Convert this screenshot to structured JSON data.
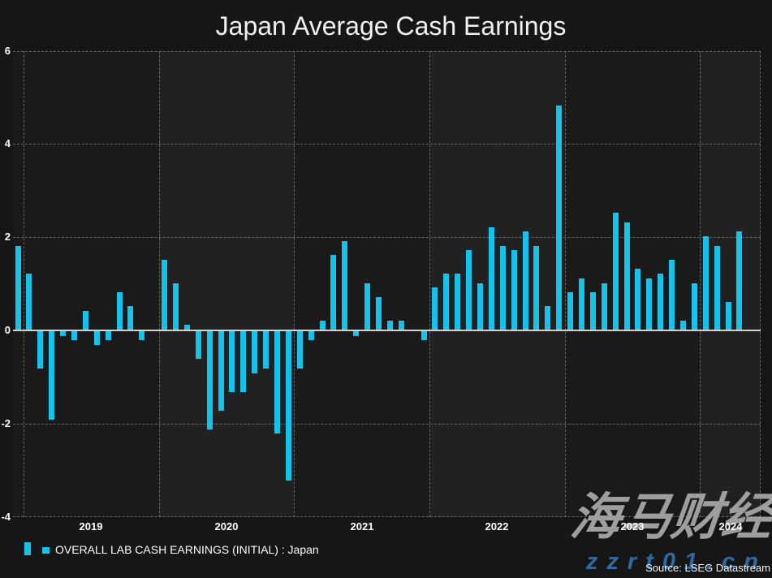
{
  "title": "Japan Average Cash Earnings",
  "legend": {
    "label": "OVERALL LAB CASH EARNINGS (INITIAL) : Japan"
  },
  "source": "Source: LSEG Datastream",
  "watermark": {
    "text": "海马财经",
    "url": "zzrt01.cn"
  },
  "colors": {
    "bar": "#17c2ea",
    "background": "#161616",
    "band_dark": "#1a1a1a",
    "band_light": "#212121",
    "grid": "#7d7d7d",
    "zero_line": "#d6d2ca",
    "text": "#ffffff",
    "watermark_gray": "#9e9e9e",
    "watermark_blue": "#31699f"
  },
  "chart_data": {
    "type": "bar",
    "title": "Japan Average Cash Earnings",
    "xlabel": "",
    "ylabel": "",
    "ylim": [
      -4,
      6
    ],
    "yticks": [
      6,
      4,
      2,
      0,
      -2,
      -4
    ],
    "xticks": [
      "2019",
      "2020",
      "2021",
      "2022",
      "2023",
      "2024"
    ],
    "grid": "dashed",
    "legend_position": "bottom-left",
    "x": [
      "2018-12",
      "2019-01",
      "2019-02",
      "2019-03",
      "2019-04",
      "2019-05",
      "2019-06",
      "2019-07",
      "2019-08",
      "2019-09",
      "2019-10",
      "2019-11",
      "2019-12",
      "2020-01",
      "2020-02",
      "2020-03",
      "2020-04",
      "2020-05",
      "2020-06",
      "2020-07",
      "2020-08",
      "2020-09",
      "2020-10",
      "2020-11",
      "2020-12",
      "2021-01",
      "2021-02",
      "2021-03",
      "2021-04",
      "2021-05",
      "2021-06",
      "2021-07",
      "2021-08",
      "2021-09",
      "2021-10",
      "2021-11",
      "2021-12",
      "2022-01",
      "2022-02",
      "2022-03",
      "2022-04",
      "2022-05",
      "2022-06",
      "2022-07",
      "2022-08",
      "2022-09",
      "2022-10",
      "2022-11",
      "2022-12",
      "2023-01",
      "2023-02",
      "2023-03",
      "2023-04",
      "2023-05",
      "2023-06",
      "2023-07",
      "2023-08",
      "2023-09",
      "2023-10",
      "2023-11",
      "2023-12",
      "2024-01",
      "2024-02",
      "2024-03",
      "2024-04"
    ],
    "values": [
      1.8,
      1.2,
      -0.8,
      -1.9,
      -0.1,
      -0.2,
      0.4,
      -0.3,
      -0.2,
      0.8,
      0.5,
      -0.2,
      0.0,
      1.5,
      1.0,
      0.1,
      -0.6,
      -2.1,
      -1.7,
      -1.3,
      -1.3,
      -0.9,
      -0.8,
      -2.2,
      -3.2,
      -0.8,
      -0.2,
      0.2,
      1.6,
      1.9,
      -0.1,
      1.0,
      0.7,
      0.2,
      0.2,
      0.0,
      -0.2,
      0.9,
      1.2,
      1.2,
      1.7,
      1.0,
      2.2,
      1.8,
      1.7,
      2.1,
      1.8,
      0.5,
      4.8,
      0.8,
      1.1,
      0.8,
      1.0,
      2.5,
      2.3,
      1.3,
      1.1,
      1.2,
      1.5,
      0.2,
      1.0,
      2.0,
      1.8,
      0.6,
      2.1
    ]
  }
}
